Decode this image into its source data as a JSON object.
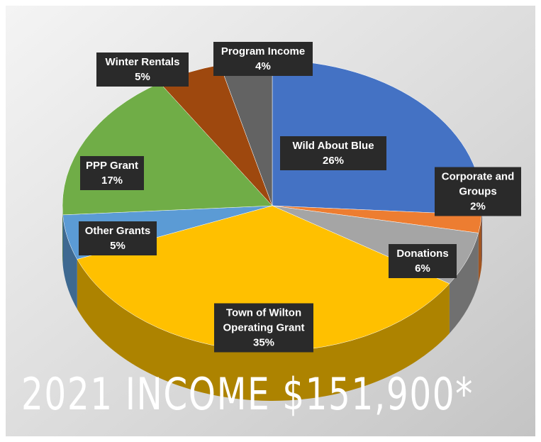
{
  "chart_data": {
    "type": "pie3d",
    "title": "2021 INCOME $151,900*",
    "categories": [
      "Wild About Blue",
      "Corporate and Groups",
      "Donations",
      "Town of Wilton Operating Grant",
      "Other Grants",
      "PPP Grant",
      "Winter Rentals",
      "Program Income"
    ],
    "values": [
      26,
      2,
      6,
      35,
      5,
      17,
      5,
      4
    ],
    "value_labels": [
      "26%",
      "2%",
      "6%",
      "35%",
      "5%",
      "17%",
      "5%",
      "4%"
    ],
    "colors": [
      "#4472c4",
      "#ed7d31",
      "#a5a5a5",
      "#ffc000",
      "#5b9bd5",
      "#70ad47",
      "#9e480e",
      "#636363"
    ]
  }
}
